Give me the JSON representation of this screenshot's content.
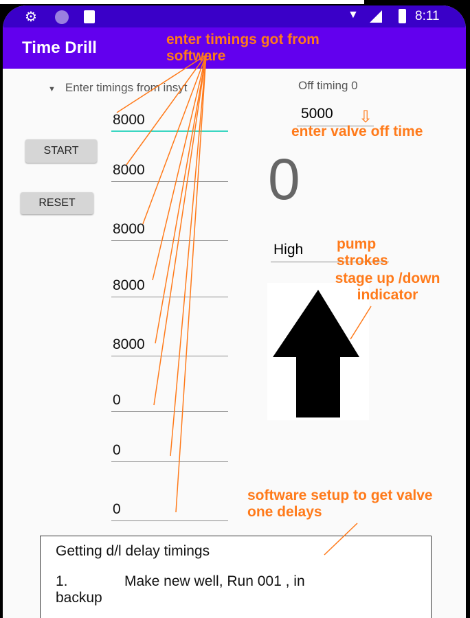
{
  "status_bar": {
    "time": "8:11",
    "icons": [
      "gear-icon",
      "circle-icon",
      "sd-card-icon",
      "wifi-icon",
      "signal-icon",
      "battery-icon"
    ]
  },
  "app_bar": {
    "title": "Time Drill",
    "color": "#6200ee"
  },
  "spinner": {
    "label": "Enter timings from insyt"
  },
  "off_timing": {
    "label": "Off timing 0",
    "value": "5000"
  },
  "buttons": {
    "start": "START",
    "reset": "RESET"
  },
  "timings": [
    "8000",
    "8000",
    "8000",
    "8000",
    "8000",
    "0",
    "0",
    "0"
  ],
  "counter": "0",
  "stage": {
    "value": "High",
    "indicator": "arrow-up-icon"
  },
  "instructions": {
    "heading": "Getting d/l delay timings",
    "step1_num": "1.",
    "step1_text": "Make new well, Run 001 , in",
    "step1_cont": "backup"
  },
  "annotations": {
    "timings": "enter timings got from software",
    "valve_off": "enter valve off time",
    "pump": "pump strokes",
    "stage": "stage up /down indicator",
    "software": "software setup to get valve one delays",
    "color": "#ff7a1a"
  }
}
